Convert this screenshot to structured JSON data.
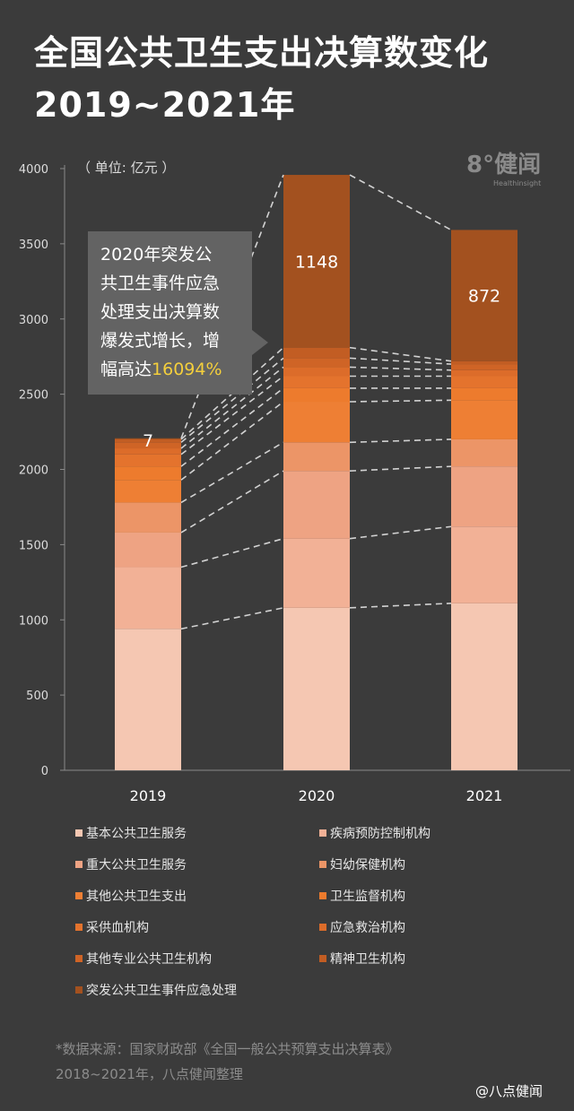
{
  "title": {
    "line1": "全国公共卫生支出决算数变化",
    "line2": "2019~2021年"
  },
  "unit_label": "（ 单位: 亿元 ）",
  "logo": {
    "main": "8°健闻",
    "sub": "Healthinsight"
  },
  "callout": {
    "lines": [
      "2020年突发公",
      "共卫生事件应急",
      "处理支出决算数",
      "爆发式增长，增"
    ],
    "last_prefix": "幅高达",
    "highlight": "16094%"
  },
  "colors": {
    "background": "#3b3b3b",
    "highlight": "#f4cf3c",
    "categories": [
      "#f5c7b2",
      "#f2b196",
      "#eea383",
      "#ec9567",
      "#ee7f34",
      "#ed7b2d",
      "#e4732d",
      "#dc6c2a",
      "#cf6426",
      "#c25d23",
      "#a3511f"
    ]
  },
  "chart_data": {
    "type": "bar",
    "stacked": true,
    "categories": [
      "2019",
      "2020",
      "2021"
    ],
    "ylim": [
      0,
      4000
    ],
    "yticks": [
      0,
      500,
      1000,
      1500,
      2000,
      2500,
      3000,
      3500,
      4000
    ],
    "series": [
      {
        "name": "基本公共卫生服务",
        "values": [
          940,
          1080,
          1110
        ]
      },
      {
        "name": "疾病预防控制机构",
        "values": [
          410,
          460,
          510
        ]
      },
      {
        "name": "重大公共卫生服务",
        "values": [
          230,
          450,
          400
        ]
      },
      {
        "name": "妇幼保健机构",
        "values": [
          200,
          190,
          180
        ]
      },
      {
        "name": "其他公共卫生支出",
        "values": [
          150,
          270,
          260
        ]
      },
      {
        "name": "卫生监督机构",
        "values": [
          90,
          90,
          80
        ]
      },
      {
        "name": "采供血机构",
        "values": [
          80,
          80,
          80
        ]
      },
      {
        "name": "应急救治机构",
        "values": [
          40,
          60,
          40
        ]
      },
      {
        "name": "其他专业公共卫生机构",
        "values": [
          40,
          60,
          40
        ]
      },
      {
        "name": "精神卫生机构",
        "values": [
          20,
          70,
          20
        ]
      },
      {
        "name": "突发公共卫生事件应急处理",
        "values": [
          7,
          1148,
          872
        ]
      }
    ],
    "data_labels": [
      {
        "category": "2019",
        "series": "突发公共卫生事件应急处理",
        "text": "7"
      },
      {
        "category": "2020",
        "series": "突发公共卫生事件应急处理",
        "text": "1148"
      },
      {
        "category": "2021",
        "series": "突发公共卫生事件应急处理",
        "text": "872"
      }
    ]
  },
  "source": {
    "line1": "*数据来源：国家财政部《全国一般公共预算支出决算表》",
    "line2": "2018~2021年，八点健闻整理"
  },
  "watermark": "@八点健闻"
}
